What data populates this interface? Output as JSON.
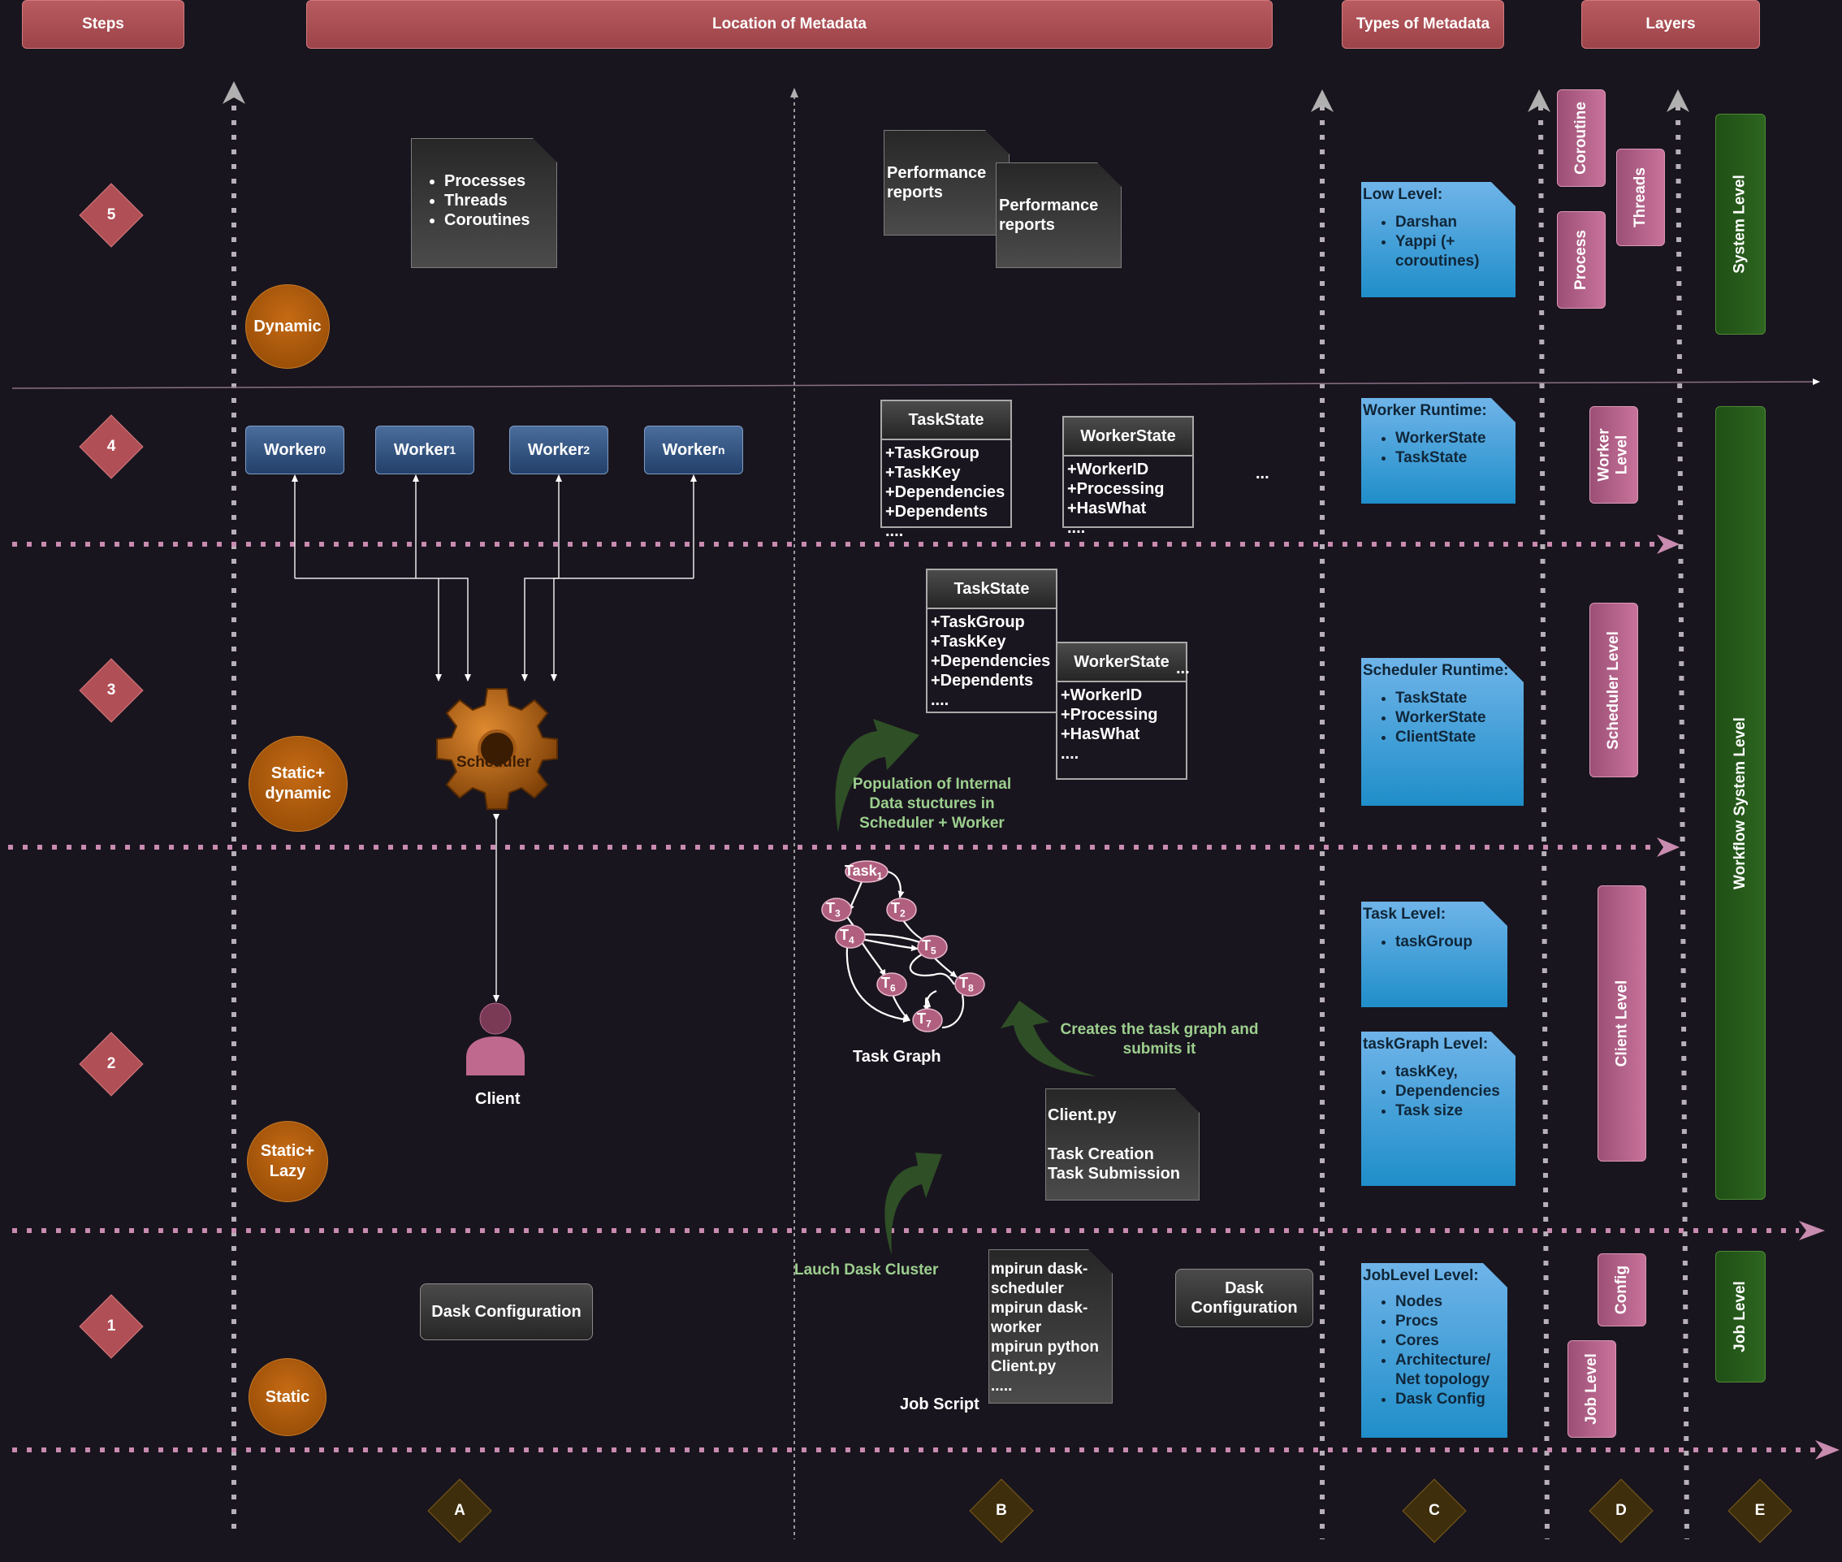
{
  "headers": {
    "steps": "Steps",
    "location": "Location of Metadata",
    "types": "Types of Metadata",
    "layers": "Layers"
  },
  "steps": [
    "5",
    "4",
    "3",
    "2",
    "1"
  ],
  "columns": [
    "A",
    "B",
    "C",
    "D",
    "E"
  ],
  "circles": {
    "dynamic": "Dynamic",
    "static_dynamic": "Static+ dynamic",
    "static_lazy": "Static+ Lazy",
    "static": "Static"
  },
  "step5": {
    "proc_list": [
      "Processes",
      "Threads",
      "Coroutines"
    ],
    "perf1": "Performance reports",
    "perf2": "Performance reports"
  },
  "workers": [
    {
      "name": "Worker",
      "sub": "0"
    },
    {
      "name": "Worker",
      "sub": "1"
    },
    {
      "name": "Worker",
      "sub": "2"
    },
    {
      "name": "Worker",
      "sub": "n"
    }
  ],
  "step4": {
    "taskstate": {
      "title": "TaskState",
      "fields": [
        "+TaskGroup",
        "+TaskKey",
        "+Dependencies",
        "+Dependents",
        "...."
      ]
    },
    "workerstate": {
      "title": "WorkerState",
      "fields": [
        "+WorkerID",
        "+Processing",
        "+HasWhat",
        "...."
      ]
    },
    "ellipsis": "..."
  },
  "step3": {
    "taskstate": {
      "title": "TaskState",
      "fields": [
        "+TaskGroup",
        "+TaskKey",
        "+Dependencies",
        "+Dependents",
        "...."
      ]
    },
    "workerstate": {
      "title": "WorkerState",
      "fields": [
        "+WorkerID",
        "+Processing",
        "+HasWhat",
        "...."
      ]
    },
    "ellipsis": "...",
    "scheduler": "Scheduler",
    "population": "Population of Internal Data stuctures in Scheduler + Worker"
  },
  "step2": {
    "client": "Client",
    "task_graph": "Task Graph",
    "creates": "Creates the task graph and submits it",
    "clientpy": {
      "title": "Client.py",
      "lines": [
        "Task Creation",
        "Task Submission"
      ]
    },
    "nodes": [
      {
        "base": "Task",
        "sub": "1"
      },
      {
        "base": "T",
        "sub": "2"
      },
      {
        "base": "T",
        "sub": "3"
      },
      {
        "base": "T",
        "sub": "4"
      },
      {
        "base": "T",
        "sub": "5"
      },
      {
        "base": "T",
        "sub": "6"
      },
      {
        "base": "T",
        "sub": "7"
      },
      {
        "base": "T",
        "sub": "8"
      }
    ]
  },
  "step1": {
    "dask_config": "Dask Configuration",
    "dask_config2": "Dask Configuration",
    "launch": "Lauch Dask Cluster",
    "job_script_label": "Job Script",
    "job_script_lines": [
      "mpirun dask-",
      "scheduler",
      "mpirun dask-",
      "worker",
      "mpirun python",
      "Client.py",
      "....."
    ]
  },
  "types": {
    "low_level": {
      "title": "Low Level:",
      "items": [
        "Darshan",
        "Yappi (+ coroutines)"
      ]
    },
    "worker_runtime": {
      "title": "Worker Runtime:",
      "items": [
        "WorkerState",
        "TaskState"
      ]
    },
    "scheduler_runtime": {
      "title": "Scheduler Runtime:",
      "items": [
        "TaskState",
        "WorkerState",
        "ClientState"
      ]
    },
    "task_level": {
      "title": "Task Level:",
      "items": [
        "taskGroup"
      ]
    },
    "taskgraph_level": {
      "title": "taskGraph Level:",
      "items": [
        "taskKey,",
        "Dependencies",
        "Task size"
      ]
    },
    "joblevel": {
      "title": "JobLevel Level:",
      "items": [
        "Nodes",
        "Procs",
        "Cores",
        "Architecture/ Net topology",
        "Dask Config"
      ]
    }
  },
  "layers_d": {
    "coroutine": "Coroutine",
    "threads": "Threads",
    "process": "Process",
    "worker_level": "Worker Level",
    "scheduler_level": "Scheduler Level",
    "client_level": "Client Level",
    "config": "Config",
    "job_level": "Job Level"
  },
  "layers_e": {
    "system_level": "System Level",
    "workflow_system_level": "Workflow System Level",
    "job_level": "Job Level"
  },
  "colors": {
    "background": "#19151e",
    "header": "#a84e53",
    "pink_dots": "#c98bb0",
    "blue_note": "#2693cc",
    "green_layer": "#285c1c",
    "orange_circle": "#a9560a"
  }
}
